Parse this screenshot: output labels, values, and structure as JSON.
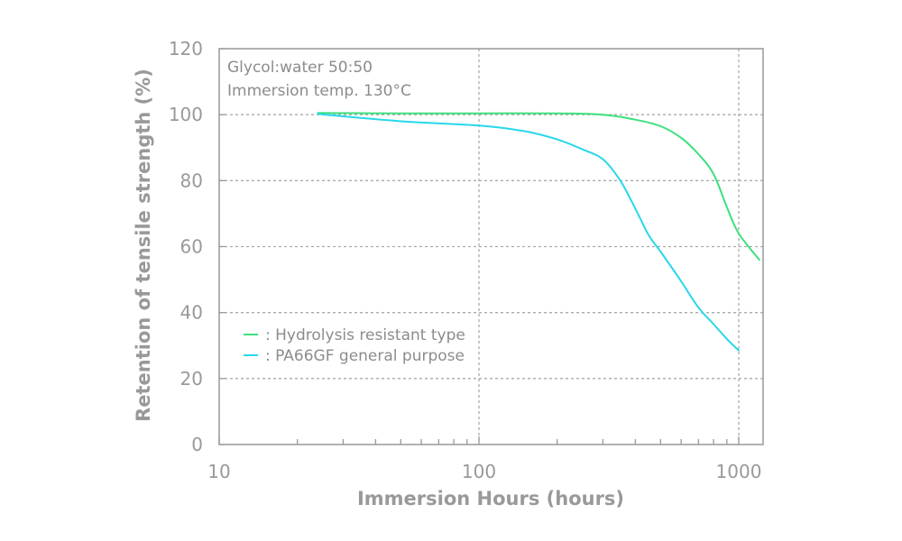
{
  "chart_data": {
    "type": "line",
    "x_scale": "log",
    "xlabel": "Immersion Hours (hours)",
    "ylabel": "Retention of tensile strength (%)",
    "xlim": [
      10,
      1200
    ],
    "ylim": [
      0,
      120
    ],
    "x_ticks": [
      10,
      100,
      1000
    ],
    "x_tick_labels": [
      "10",
      "100",
      "1000"
    ],
    "y_ticks": [
      0,
      20,
      40,
      60,
      80,
      100,
      120
    ],
    "y_tick_labels": [
      "0",
      "20",
      "40",
      "60",
      "80",
      "100",
      "120"
    ],
    "grid": "dotted at 100, 1000 (x) and 20, 40, 60, 80, 100 (y)",
    "annotations": [
      "Glycol:water 50:50",
      "Immersion temp. 130°C"
    ],
    "legend_placement": "bottom-left inside plot",
    "series": [
      {
        "name": ": Hydrolysis resistant type",
        "color": "#3ee07e",
        "x": [
          24,
          50,
          100,
          200,
          300,
          400,
          500,
          600,
          700,
          800,
          900,
          1000,
          1200
        ],
        "y": [
          100.5,
          100.4,
          100.4,
          100.4,
          100,
          98.5,
          96.5,
          93,
          88,
          82,
          72,
          64,
          56
        ]
      },
      {
        "name": ": PA66GF general purpose",
        "color": "#27d8ea",
        "x": [
          24,
          50,
          100,
          150,
          200,
          250,
          300,
          350,
          400,
          450,
          500,
          600,
          700,
          800,
          900,
          1000
        ],
        "y": [
          100.2,
          98,
          96.7,
          95,
          92.5,
          89.5,
          86.5,
          80,
          71.5,
          63.5,
          58.5,
          49.5,
          41.5,
          36.5,
          32,
          28.5
        ]
      }
    ]
  }
}
